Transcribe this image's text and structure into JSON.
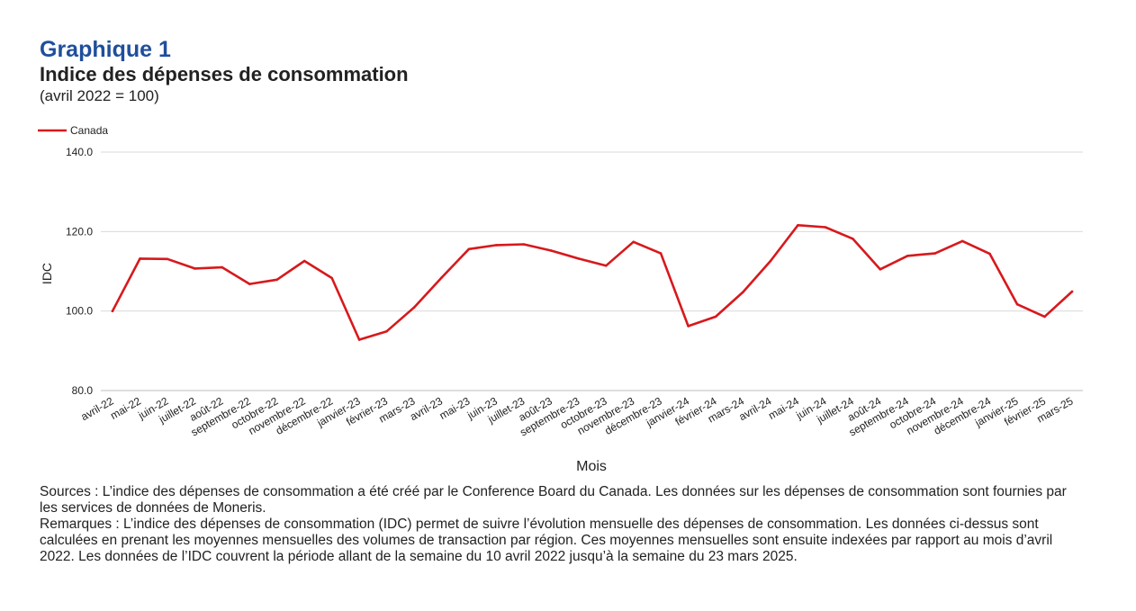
{
  "header": {
    "graph_label": "Graphique 1",
    "title": "Indice des dépenses de consommation",
    "subtitle": "(avril 2022 = 100)"
  },
  "notes": {
    "sources": "Sources : L’indice des dépenses de consommation a été créé par le Conference Board du Canada. Les données sur les dépenses de consommation sont fournies par les services de données de Moneris.",
    "remarks": "Remarques : L’indice des dépenses de consommation (IDC) permet de suivre l’évolution mensuelle des dépenses de consommation. Les données ci-dessus sont calculées en prenant les moyennes mensuelles des volumes de transaction par région. Ces moyennes mensuelles sont ensuite indexées par rapport au mois d’avril 2022. Les données de l’IDC couvrent la période allant de la semaine du 10 avril 2022 jusqu’à la semaine du 23 mars 2025."
  },
  "chart_data": {
    "type": "line",
    "xlabel": "Mois",
    "ylabel": "IDC",
    "ylim": [
      80,
      140
    ],
    "yticks": [
      "80.0",
      "100.0",
      "120.0",
      "140.0"
    ],
    "ytick_values": [
      80,
      100,
      120,
      140
    ],
    "grid": true,
    "legend_position": "top-left",
    "categories": [
      "avril-22",
      "mai-22",
      "juin-22",
      "juillet-22",
      "août-22",
      "septembre-22",
      "octobre-22",
      "novembre-22",
      "décembre-22",
      "janvier-23",
      "février-23",
      "mars-23",
      "avril-23",
      "mai-23",
      "juin-23",
      "juillet-23",
      "août-23",
      "septembre-23",
      "octobre-23",
      "novembre-23",
      "décembre-23",
      "janvier-24",
      "février-24",
      "mars-24",
      "avril-24",
      "mai-24",
      "juin-24",
      "juillet-24",
      "août-24",
      "septembre-24",
      "octobre-24",
      "novembre-24",
      "décembre-24",
      "janvier-25",
      "février-25",
      "mars-25"
    ],
    "series": [
      {
        "name": "Canada",
        "color": "#d7191c",
        "values": [
          100.0,
          113.2,
          113.1,
          110.7,
          111.0,
          106.8,
          107.9,
          112.6,
          108.3,
          92.8,
          94.9,
          100.9,
          108.4,
          115.6,
          116.6,
          116.8,
          115.2,
          113.2,
          111.4,
          117.4,
          114.5,
          96.2,
          98.6,
          104.8,
          112.6,
          121.6,
          121.1,
          118.2,
          110.5,
          113.9,
          114.5,
          117.6,
          114.4,
          101.7,
          98.6,
          104.9
        ]
      }
    ]
  }
}
